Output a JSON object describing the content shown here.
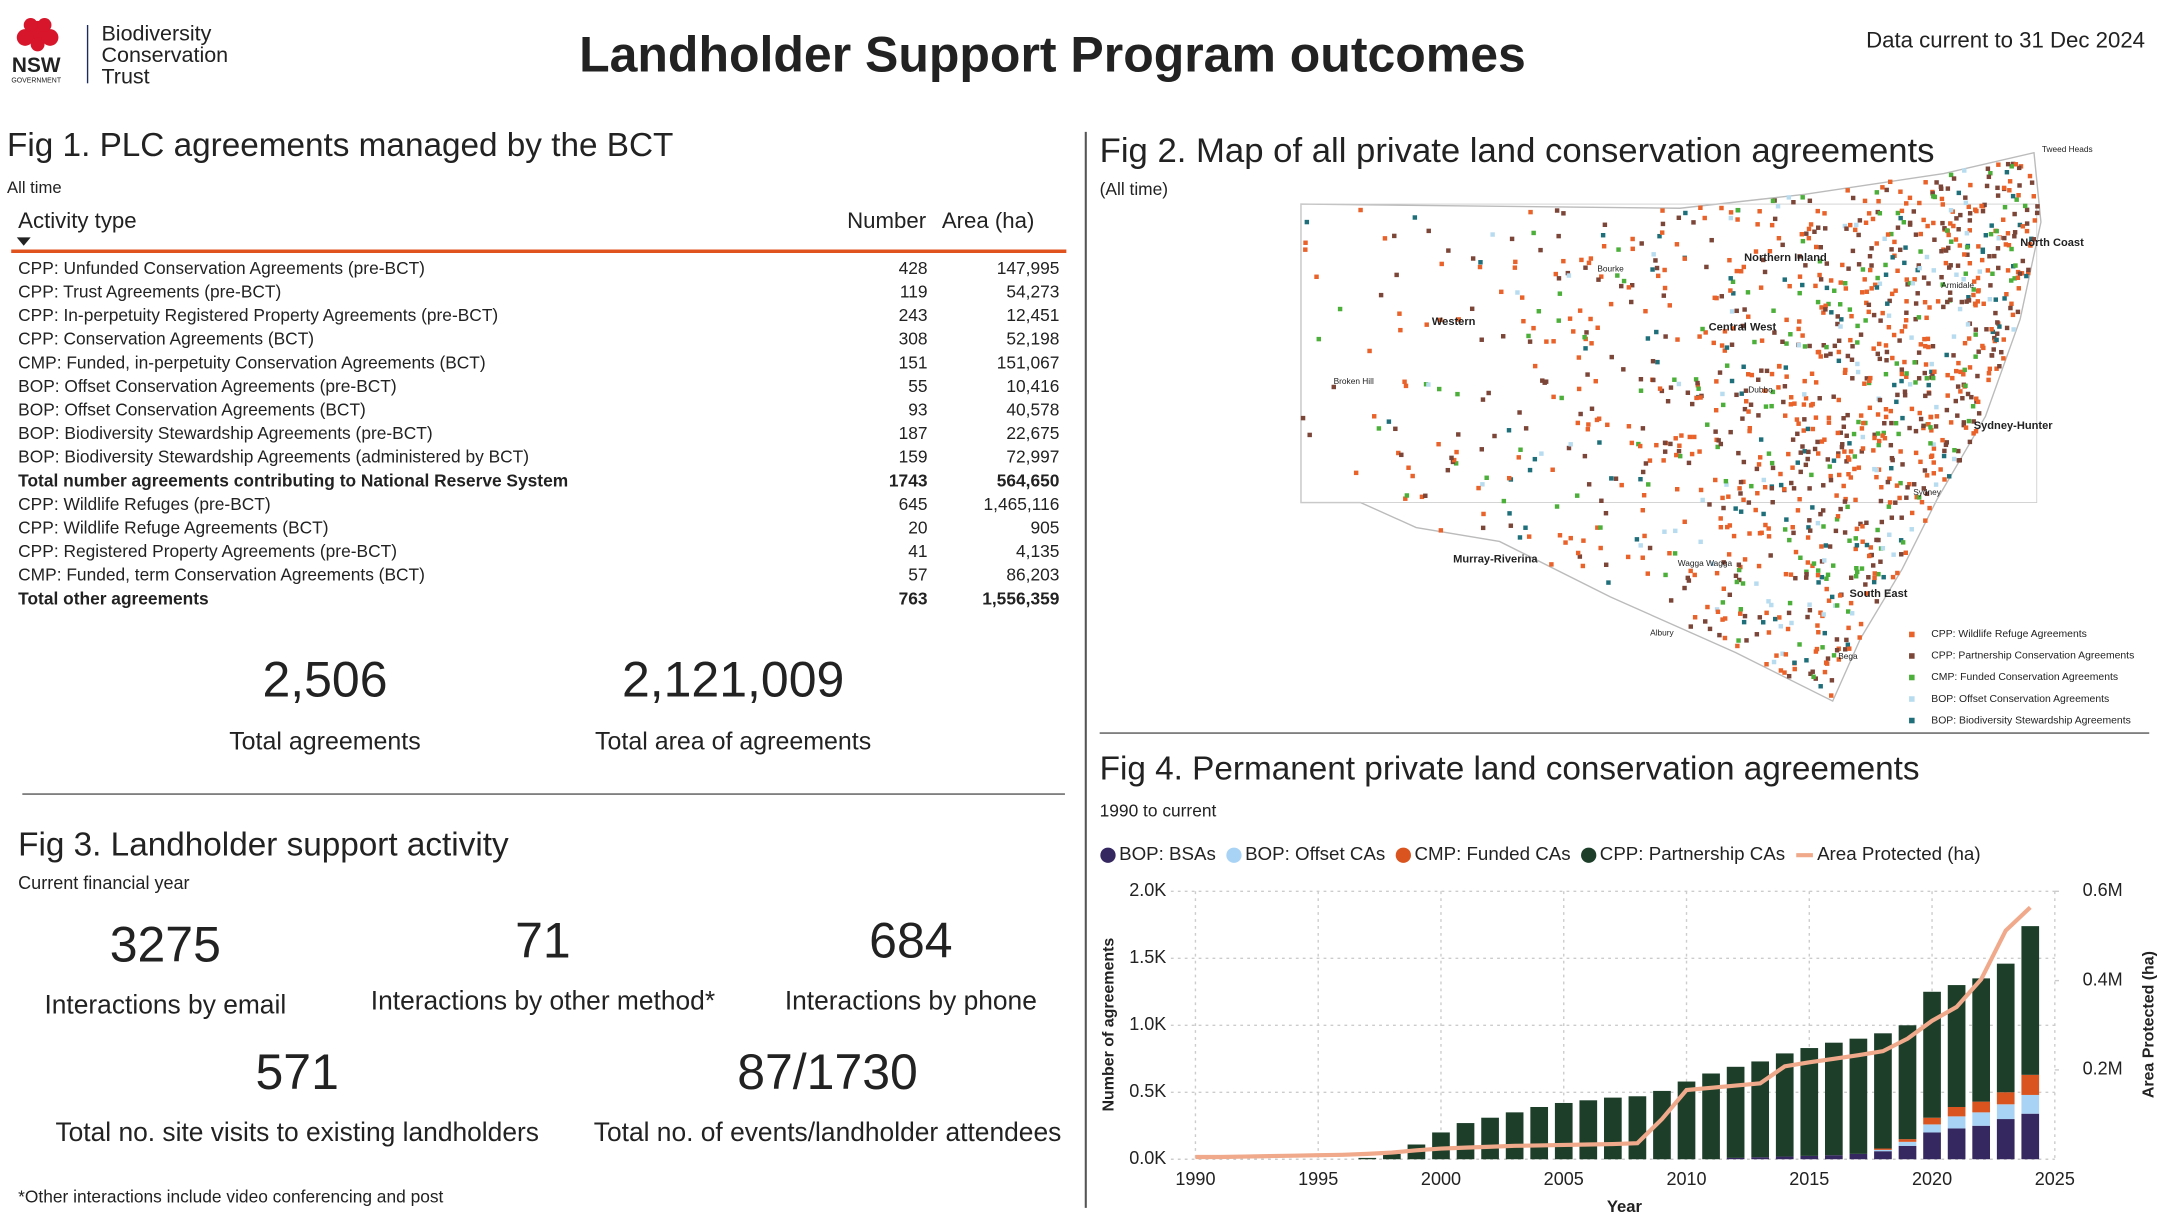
{
  "header": {
    "title": "Landholder Support Program outcomes",
    "date": "Data current to 31 Dec 2024",
    "logo": {
      "nsw": "NSW",
      "government": "GOVERNMENT",
      "org_lines": [
        "Biodiversity",
        "Conservation",
        "Trust"
      ]
    }
  },
  "fig1": {
    "title": "Fig 1. PLC agreements managed by the BCT",
    "subtitle": "All time",
    "columns": [
      "Activity type",
      "Number",
      "Area (ha)"
    ],
    "rows": [
      [
        "CPP: Unfunded Conservation Agreements (pre-BCT)",
        "428",
        "147,995"
      ],
      [
        "CPP: Trust Agreements (pre-BCT)",
        "119",
        "54,273"
      ],
      [
        "CPP: In-perpetuity Registered Property Agreements (pre-BCT)",
        "243",
        "12,451"
      ],
      [
        "CPP: Conservation Agreements (BCT)",
        "308",
        "52,198"
      ],
      [
        "CMP: Funded, in-perpetuity Conservation Agreements (BCT)",
        "151",
        "151,067"
      ],
      [
        "BOP: Offset Conservation Agreements (pre-BCT)",
        "55",
        "10,416"
      ],
      [
        "BOP: Offset Conservation Agreements (BCT)",
        "93",
        "40,578"
      ],
      [
        "BOP: Biodiversity Stewardship Agreements (pre-BCT)",
        "187",
        "22,675"
      ],
      [
        "BOP: Biodiversity Stewardship Agreements (administered by BCT)",
        "159",
        "72,997"
      ],
      [
        "Total number agreements contributing to National Reserve System",
        "1743",
        "564,650"
      ],
      [
        "CPP: Wildlife Refuges (pre-BCT)",
        "645",
        "1,465,116"
      ],
      [
        "CPP: Wildlife Refuge Agreements (BCT)",
        "20",
        "905"
      ],
      [
        "CPP: Registered Property Agreements (pre-BCT)",
        "41",
        "4,135"
      ],
      [
        "CMP: Funded, term Conservation Agreements (BCT)",
        "57",
        "86,203"
      ],
      [
        "Total other agreements",
        "763",
        "1,556,359"
      ]
    ],
    "kpis": [
      {
        "value": "2,506",
        "label": "Total agreements"
      },
      {
        "value": "2,121,009",
        "label": "Total area of agreements"
      }
    ]
  },
  "fig2": {
    "title": "Fig 2. Map of all private land conservation agreements",
    "subtitle": "(All time)",
    "regions": [
      "Northern Inland",
      "Western",
      "Central West",
      "North Coast",
      "Sydney-Hunter",
      "Murray-Riverina",
      "South East"
    ],
    "towns": [
      "Tweed Heads",
      "Bourke",
      "Broken Hill",
      "Dubbo",
      "Sydney",
      "Wagga Wagga",
      "Albury",
      "Bega",
      "Armidale"
    ],
    "legend": [
      {
        "name": "CPP: Wildlife Refuge Agreements",
        "color": "#e8622a"
      },
      {
        "name": "CPP: Partnership Conservation Agreements",
        "color": "#7b4538"
      },
      {
        "name": "CMP: Funded Conservation Agreements",
        "color": "#4caf3a"
      },
      {
        "name": "BOP: Offset Conservation Agreements",
        "color": "#b8dcef"
      },
      {
        "name": "BOP: Biodiversity Stewardship Agreements",
        "color": "#1f6f7a"
      }
    ]
  },
  "fig3": {
    "title": "Fig 3. Landholder support activity",
    "subtitle": "Current financial year",
    "kpis": [
      {
        "value": "3275",
        "label": "Interactions by email"
      },
      {
        "value": "71",
        "label": "Interactions by other method*"
      },
      {
        "value": "684",
        "label": "Interactions by phone"
      },
      {
        "value": "571",
        "label": "Total no. site visits to existing landholders"
      },
      {
        "value": "87/1730",
        "label": "Total no. of events/landholder attendees"
      }
    ],
    "footnote": "*Other interactions include video conferencing and post"
  },
  "chart_data": {
    "type": "bar",
    "title": "Fig 4. Permanent private land conservation agreements",
    "subtitle": "1990 to current",
    "x_label": "Year",
    "y_label": "Number of agreements",
    "y2_label": "Area Protected (ha)",
    "stacked": true,
    "grid": true,
    "x": [
      1990,
      1991,
      1992,
      1993,
      1994,
      1995,
      1996,
      1997,
      1998,
      1999,
      2000,
      2001,
      2002,
      2003,
      2004,
      2005,
      2006,
      2007,
      2008,
      2009,
      2010,
      2011,
      2012,
      2013,
      2014,
      2015,
      2016,
      2017,
      2018,
      2019,
      2020,
      2021,
      2022,
      2023,
      2024
    ],
    "xlim": [
      1989,
      2025
    ],
    "xticks": [
      1990,
      1995,
      2000,
      2005,
      2010,
      2015,
      2020,
      2025
    ],
    "ylim": [
      0,
      2000
    ],
    "yticks": [
      {
        "value": 0,
        "label": "0.0K"
      },
      {
        "value": 500,
        "label": "0.5K"
      },
      {
        "value": 1000,
        "label": "1.0K"
      },
      {
        "value": 1500,
        "label": "1.5K"
      },
      {
        "value": 2000,
        "label": "2.0K"
      }
    ],
    "y2lim": [
      0,
      600000
    ],
    "y2ticks": [
      {
        "value": 200000,
        "label": "0.2M"
      },
      {
        "value": 400000,
        "label": "0.4M"
      },
      {
        "value": 600000,
        "label": "0.6M"
      }
    ],
    "series": [
      {
        "name": "BOP: BSAs",
        "color": "#35275f",
        "values": [
          0,
          0,
          0,
          0,
          0,
          0,
          0,
          0,
          0,
          0,
          0,
          0,
          0,
          0,
          0,
          0,
          0,
          0,
          0,
          0,
          0,
          0,
          10,
          15,
          20,
          25,
          30,
          40,
          60,
          100,
          200,
          230,
          250,
          300,
          340
        ]
      },
      {
        "name": "BOP: Offset CAs",
        "color": "#a9d3f5",
        "values": [
          0,
          0,
          0,
          0,
          0,
          0,
          0,
          0,
          0,
          0,
          0,
          0,
          0,
          0,
          0,
          0,
          0,
          0,
          0,
          0,
          0,
          0,
          0,
          0,
          0,
          0,
          0,
          0,
          10,
          30,
          60,
          90,
          100,
          110,
          140
        ]
      },
      {
        "name": "CMP: Funded CAs",
        "color": "#d9541e",
        "values": [
          0,
          0,
          0,
          0,
          0,
          0,
          0,
          0,
          0,
          0,
          0,
          0,
          0,
          0,
          0,
          0,
          0,
          0,
          0,
          0,
          0,
          0,
          0,
          0,
          0,
          0,
          0,
          0,
          10,
          20,
          50,
          70,
          80,
          90,
          150
        ]
      },
      {
        "name": "CPP: Partnership CAs",
        "color": "#1d3f2a",
        "values": [
          0,
          0,
          0,
          0,
          0,
          0,
          0,
          10,
          40,
          110,
          200,
          270,
          310,
          350,
          390,
          420,
          440,
          460,
          470,
          510,
          580,
          640,
          680,
          715,
          770,
          805,
          840,
          860,
          860,
          850,
          940,
          910,
          920,
          960,
          1110
        ]
      },
      {
        "name": "Area Protected (ha)",
        "type": "line",
        "axis": "y2",
        "color": "#f0a98a",
        "values": [
          5000,
          5000,
          6000,
          7000,
          8000,
          9000,
          10000,
          12000,
          15000,
          20000,
          24000,
          26000,
          28000,
          30000,
          31000,
          32000,
          33000,
          34000,
          36000,
          90000,
          155000,
          160000,
          165000,
          170000,
          208000,
          217000,
          225000,
          233000,
          242000,
          270000,
          310000,
          341000,
          403000,
          512000,
          564000
        ]
      }
    ]
  }
}
